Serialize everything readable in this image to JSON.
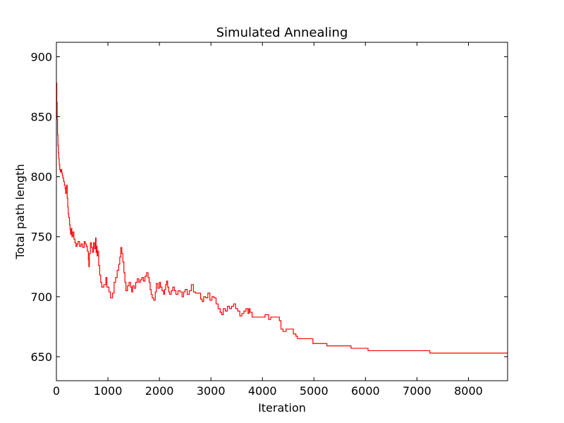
{
  "chart_data": {
    "type": "line",
    "title": "Simulated Annealing",
    "xlabel": "Iteration",
    "ylabel": "Total path length",
    "xlim": [
      0,
      8760
    ],
    "ylim": [
      630,
      912
    ],
    "xticks": [
      0,
      1000,
      2000,
      3000,
      4000,
      5000,
      6000,
      7000,
      8000
    ],
    "yticks": [
      650,
      700,
      750,
      800,
      850,
      900
    ],
    "grid": false,
    "line_color": "#ff0000",
    "series": [
      {
        "step": true,
        "points": [
          [
            0,
            878
          ],
          [
            8,
            862
          ],
          [
            15,
            848
          ],
          [
            22,
            835
          ],
          [
            30,
            826
          ],
          [
            38,
            820
          ],
          [
            45,
            815
          ],
          [
            55,
            810
          ],
          [
            65,
            806
          ],
          [
            75,
            804
          ],
          [
            90,
            806
          ],
          [
            105,
            803
          ],
          [
            115,
            801
          ],
          [
            125,
            799
          ],
          [
            140,
            796
          ],
          [
            155,
            793
          ],
          [
            170,
            790
          ],
          [
            180,
            786
          ],
          [
            190,
            791
          ],
          [
            200,
            793
          ],
          [
            210,
            782
          ],
          [
            220,
            775
          ],
          [
            230,
            769
          ],
          [
            240,
            766
          ],
          [
            255,
            760
          ],
          [
            265,
            756
          ],
          [
            275,
            752
          ],
          [
            290,
            757
          ],
          [
            300,
            750
          ],
          [
            320,
            754
          ],
          [
            340,
            748
          ],
          [
            360,
            745
          ],
          [
            380,
            742
          ],
          [
            400,
            744
          ],
          [
            420,
            746
          ],
          [
            450,
            742
          ],
          [
            480,
            744
          ],
          [
            510,
            741
          ],
          [
            540,
            746
          ],
          [
            560,
            744
          ],
          [
            580,
            742
          ],
          [
            600,
            738
          ],
          [
            620,
            731
          ],
          [
            630,
            725
          ],
          [
            640,
            736
          ],
          [
            660,
            745
          ],
          [
            680,
            741
          ],
          [
            700,
            737
          ],
          [
            720,
            745
          ],
          [
            740,
            740
          ],
          [
            760,
            749
          ],
          [
            770,
            737
          ],
          [
            780,
            742
          ],
          [
            790,
            734
          ],
          [
            800,
            738
          ],
          [
            820,
            726
          ],
          [
            840,
            718
          ],
          [
            860,
            712
          ],
          [
            880,
            708
          ],
          [
            920,
            710
          ],
          [
            960,
            716
          ],
          [
            980,
            708
          ],
          [
            1020,
            704
          ],
          [
            1050,
            699
          ],
          [
            1090,
            703
          ],
          [
            1120,
            712
          ],
          [
            1150,
            716
          ],
          [
            1180,
            722
          ],
          [
            1210,
            727
          ],
          [
            1230,
            733
          ],
          [
            1250,
            741
          ],
          [
            1270,
            736
          ],
          [
            1290,
            729
          ],
          [
            1310,
            720
          ],
          [
            1330,
            712
          ],
          [
            1350,
            705
          ],
          [
            1380,
            709
          ],
          [
            1410,
            712
          ],
          [
            1440,
            708
          ],
          [
            1460,
            704
          ],
          [
            1480,
            709
          ],
          [
            1510,
            707
          ],
          [
            1540,
            712
          ],
          [
            1570,
            715
          ],
          [
            1600,
            712
          ],
          [
            1630,
            714
          ],
          [
            1660,
            716
          ],
          [
            1690,
            713
          ],
          [
            1720,
            717
          ],
          [
            1750,
            720
          ],
          [
            1780,
            716
          ],
          [
            1800,
            712
          ],
          [
            1820,
            706
          ],
          [
            1840,
            702
          ],
          [
            1860,
            699
          ],
          [
            1890,
            697
          ],
          [
            1920,
            704
          ],
          [
            1940,
            711
          ],
          [
            1970,
            707
          ],
          [
            2000,
            712
          ],
          [
            2020,
            708
          ],
          [
            2050,
            705
          ],
          [
            2080,
            702
          ],
          [
            2100,
            706
          ],
          [
            2120,
            710
          ],
          [
            2140,
            713
          ],
          [
            2160,
            708
          ],
          [
            2180,
            704
          ],
          [
            2200,
            702
          ],
          [
            2230,
            705
          ],
          [
            2260,
            708
          ],
          [
            2290,
            705
          ],
          [
            2320,
            702
          ],
          [
            2360,
            705
          ],
          [
            2400,
            704
          ],
          [
            2440,
            700
          ],
          [
            2470,
            704
          ],
          [
            2500,
            706
          ],
          [
            2540,
            702
          ],
          [
            2580,
            705
          ],
          [
            2620,
            710
          ],
          [
            2660,
            704
          ],
          [
            2700,
            703
          ],
          [
            2750,
            703
          ],
          [
            2800,
            698
          ],
          [
            2830,
            696
          ],
          [
            2860,
            700
          ],
          [
            2900,
            699
          ],
          [
            2940,
            703
          ],
          [
            2980,
            697
          ],
          [
            3020,
            700
          ],
          [
            3060,
            699
          ],
          [
            3100,
            694
          ],
          [
            3140,
            690
          ],
          [
            3180,
            687
          ],
          [
            3210,
            685
          ],
          [
            3240,
            690
          ],
          [
            3280,
            688
          ],
          [
            3320,
            692
          ],
          [
            3360,
            690
          ],
          [
            3400,
            692
          ],
          [
            3440,
            694
          ],
          [
            3480,
            690
          ],
          [
            3520,
            688
          ],
          [
            3560,
            684
          ],
          [
            3600,
            686
          ],
          [
            3640,
            688
          ],
          [
            3680,
            690
          ],
          [
            3720,
            686
          ],
          [
            3740,
            690
          ],
          [
            3760,
            687
          ],
          [
            3800,
            683
          ],
          [
            4050,
            685
          ],
          [
            4120,
            681
          ],
          [
            4160,
            683
          ],
          [
            4330,
            680
          ],
          [
            4360,
            673
          ],
          [
            4400,
            671
          ],
          [
            4460,
            673
          ],
          [
            4600,
            669
          ],
          [
            4650,
            667
          ],
          [
            4680,
            665
          ],
          [
            4980,
            661
          ],
          [
            5250,
            659
          ],
          [
            5720,
            657
          ],
          [
            6050,
            655
          ],
          [
            7250,
            653
          ],
          [
            8760,
            653
          ]
        ]
      }
    ]
  }
}
